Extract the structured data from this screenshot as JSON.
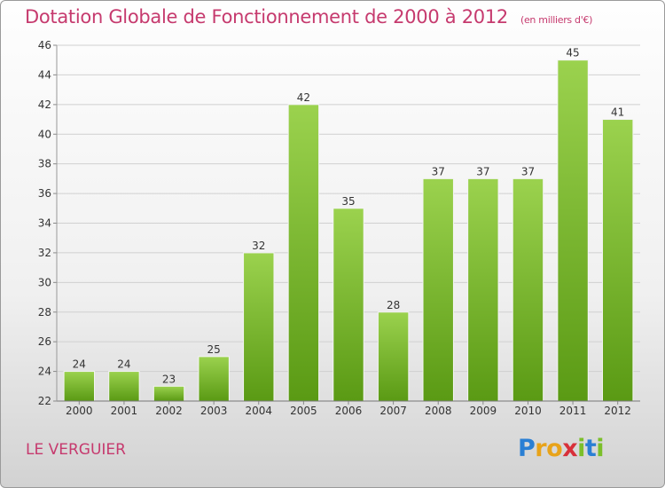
{
  "title": "Dotation Globale de Fonctionnement de 2000 à 2012",
  "subtitle": "(en milliers d'€)",
  "commune": "LE VERGUIER",
  "logo": "Proxiti",
  "colors": {
    "title": "#c63a6e",
    "bar_light": "#9bd24e",
    "bar_dark": "#5a9a14"
  },
  "chart_data": {
    "type": "bar",
    "title": "Dotation Globale de Fonctionnement de 2000 à 2012",
    "subtitle": "(en milliers d'€)",
    "categories": [
      "2000",
      "2001",
      "2002",
      "2003",
      "2004",
      "2005",
      "2006",
      "2007",
      "2008",
      "2009",
      "2010",
      "2011",
      "2012"
    ],
    "values": [
      24,
      24,
      23,
      25,
      32,
      42,
      35,
      28,
      37,
      37,
      37,
      45,
      41
    ],
    "ylim": [
      22,
      46
    ],
    "yticks": [
      22,
      24,
      26,
      28,
      30,
      32,
      34,
      36,
      38,
      40,
      42,
      44,
      46
    ],
    "grid": true,
    "data_labels": true
  }
}
